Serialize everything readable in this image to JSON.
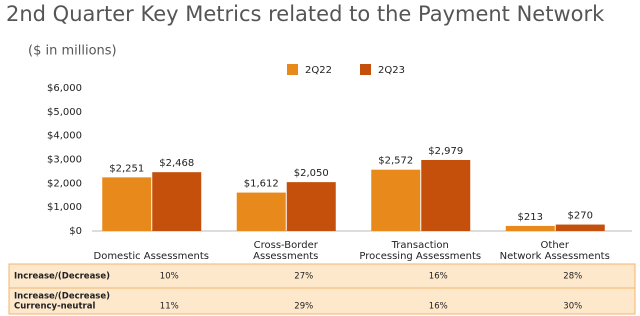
{
  "chart_data": {
    "type": "bar",
    "title": "2nd Quarter Key Metrics related to the Payment Network",
    "subtitle": "($ in millions)",
    "categories": [
      [
        "Domestic Assessments"
      ],
      [
        "Cross-Border",
        "Assessments"
      ],
      [
        "Transaction",
        "Processing Assessments"
      ],
      [
        "Other",
        "Network Assessments"
      ]
    ],
    "series": [
      {
        "name": "2Q22",
        "color": "#e8891c",
        "values": [
          2251,
          1612,
          2572,
          213
        ],
        "value_labels": [
          "$2,251",
          "$1,612",
          "$2,572",
          "$213"
        ]
      },
      {
        "name": "2Q23",
        "color": "#c4500b",
        "values": [
          2468,
          2050,
          2979,
          270
        ],
        "value_labels": [
          "$2,468",
          "$2,050",
          "$2,979",
          "$270"
        ]
      }
    ],
    "ylim": [
      0,
      6000
    ],
    "yticks": [
      {
        "value": 0,
        "label": "$0"
      },
      {
        "value": 1000,
        "label": "$1,000"
      },
      {
        "value": 2000,
        "label": "$2,000"
      },
      {
        "value": 3000,
        "label": "$3,000"
      },
      {
        "value": 4000,
        "label": "$4,000"
      },
      {
        "value": 5000,
        "label": "$5,000"
      },
      {
        "value": 6000,
        "label": "$6,000"
      }
    ],
    "grid": false
  },
  "table": {
    "rows": [
      {
        "label": [
          "Increase/(Decrease)"
        ],
        "cells": [
          "10%",
          "27%",
          "16%",
          "28%"
        ]
      },
      {
        "label": [
          "Increase/(Decrease)",
          "Currency-neutral"
        ],
        "cells": [
          "11%",
          "29%",
          "16%",
          "30%"
        ]
      }
    ]
  }
}
